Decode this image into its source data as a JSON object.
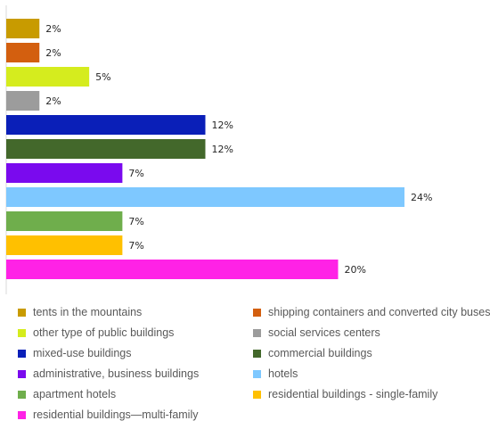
{
  "chart_data": {
    "type": "bar",
    "orientation": "horizontal",
    "title": "",
    "xlabel": "",
    "ylabel": "",
    "xlim": [
      0,
      26
    ],
    "grid": false,
    "legend_position": "bottom",
    "value_suffix": "%",
    "categories": [
      "tents in the mountains",
      "shipping containers and converted city buses",
      "other type of public buildings",
      "social services centers",
      "mixed-use buildings",
      "commercial buildings",
      "administrative, business buildings",
      "hotels",
      "apartment hotels",
      "residential buildings - single-family",
      "residential buildings—multi-family"
    ],
    "values": [
      2,
      2,
      5,
      2,
      12,
      12,
      7,
      24,
      7,
      7,
      20
    ],
    "labels": [
      "2%",
      "2%",
      "5%",
      "2%",
      "12%",
      "12%",
      "7%",
      "24%",
      "7%",
      "7%",
      "20%"
    ],
    "colors": [
      "#c89b00",
      "#d35f0f",
      "#d5ec1e",
      "#9c9c9c",
      "#0a1fb8",
      "#43682b",
      "#7a0aee",
      "#7ec8ff",
      "#6fae4c",
      "#ffc000",
      "#ff22e6"
    ]
  }
}
